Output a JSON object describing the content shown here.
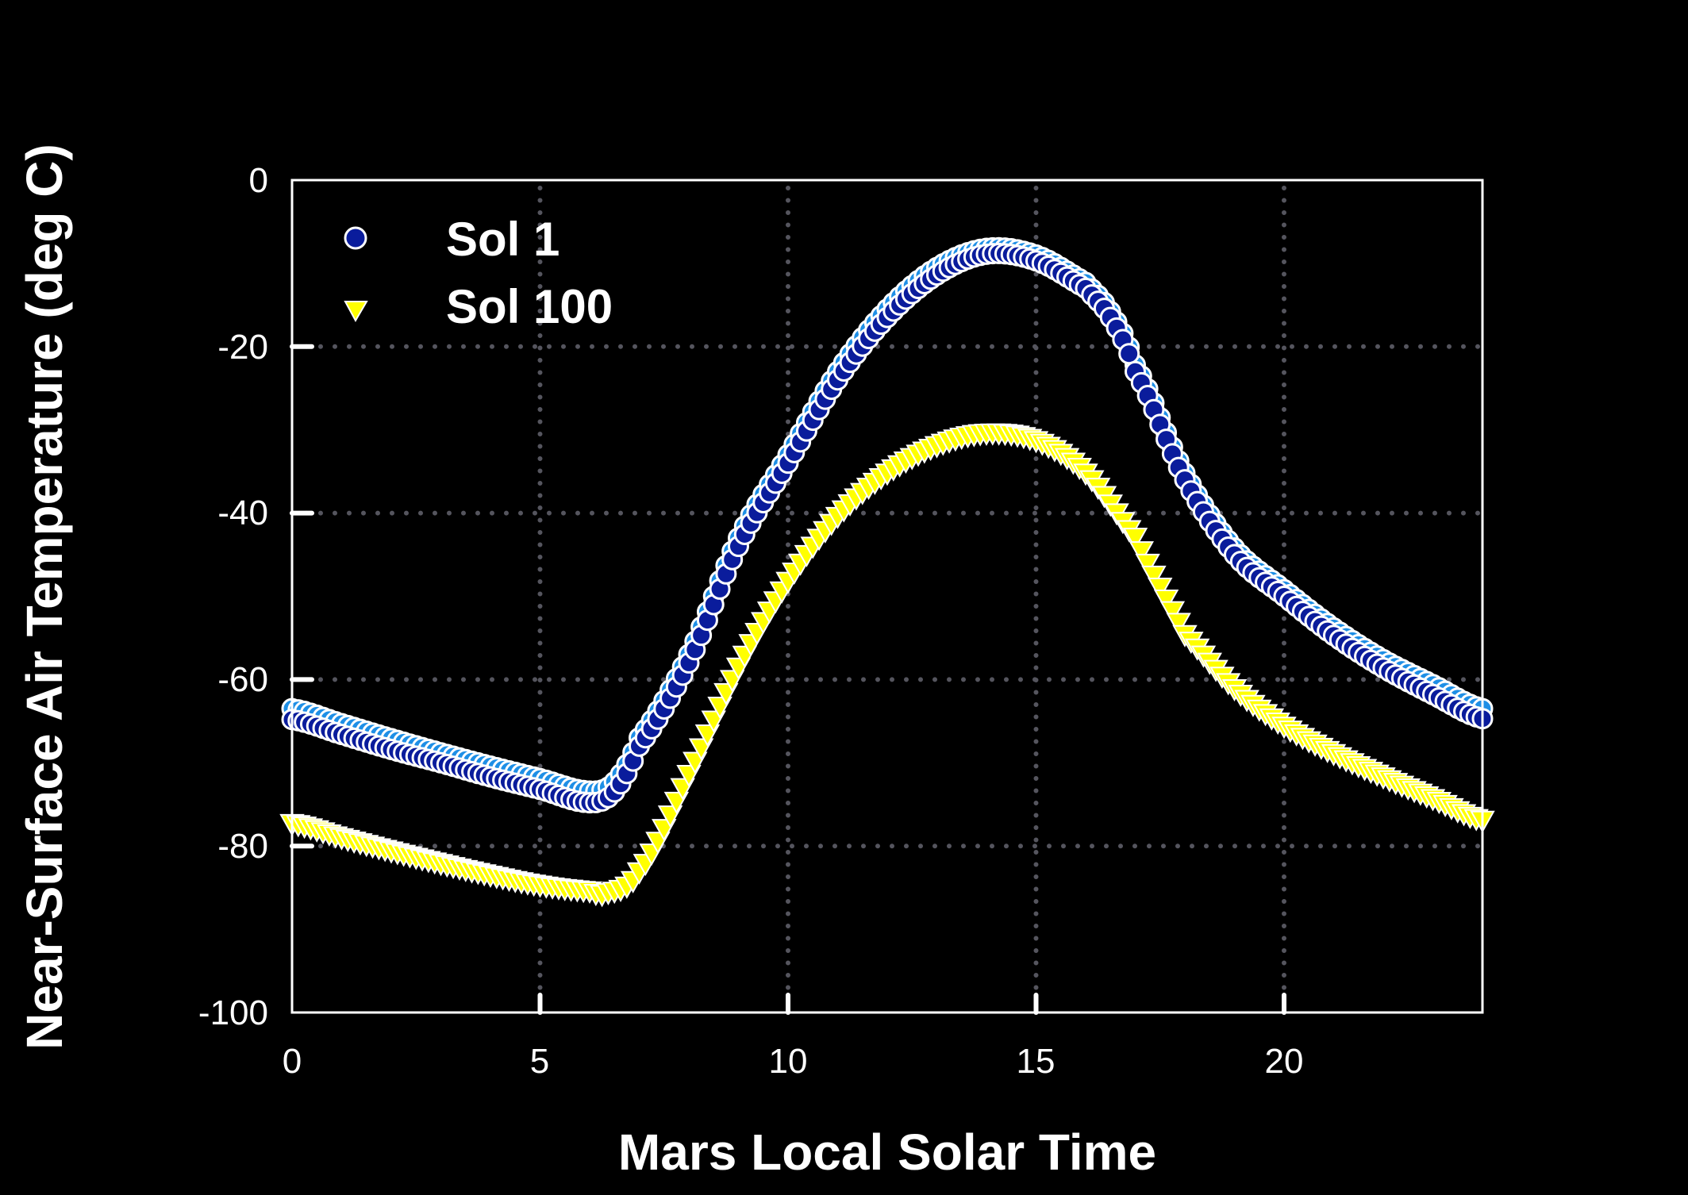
{
  "chart_data": {
    "type": "scatter",
    "xlabel": "Mars Local Solar Time",
    "ylabel": "Near-Surface Air Temperature  (deg C)",
    "xlim": [
      0,
      24
    ],
    "ylim": [
      -100,
      0
    ],
    "xticks": [
      "0",
      "5",
      "10",
      "15",
      "20"
    ],
    "yticks": [
      "0",
      "-20",
      "-40",
      "-60",
      "-80",
      "-100"
    ],
    "grid": true,
    "legend_position": "top-left",
    "series": [
      {
        "name": "",
        "marker": "circle",
        "color": "#1e8fe6",
        "x": [
          0,
          1,
          2,
          3,
          4,
          5,
          6,
          6.5,
          7,
          8,
          9,
          10,
          11,
          12,
          13,
          14,
          15,
          16,
          16.5,
          17,
          18,
          19,
          20,
          21,
          22,
          23,
          24
        ],
        "y": [
          -63.5,
          -65.3,
          -67.1,
          -68.8,
          -70.4,
          -71.9,
          -73.4,
          -72.3,
          -67,
          -57,
          -43,
          -33,
          -23,
          -15.5,
          -10.5,
          -8.2,
          -9,
          -12.3,
          -15.8,
          -22.2,
          -35.2,
          -44.2,
          -49.2,
          -53.8,
          -57.6,
          -60.6,
          -63.5
        ]
      },
      {
        "name": "Sol 1",
        "marker": "circle",
        "color": "#0a1c9c",
        "x": [
          0,
          1,
          2,
          3,
          4,
          5,
          6,
          6.5,
          7,
          8,
          9,
          10,
          11,
          12,
          13,
          14,
          15,
          16,
          16.5,
          17,
          18,
          19,
          20,
          21,
          22,
          23,
          24
        ],
        "y": [
          -64.8,
          -66.6,
          -68.4,
          -70,
          -71.7,
          -73.2,
          -74.8,
          -73.5,
          -68,
          -58,
          -44,
          -34,
          -24,
          -16.5,
          -11.4,
          -8.9,
          -9.7,
          -13,
          -16.5,
          -23,
          -36,
          -45,
          -50,
          -54.7,
          -58.6,
          -61.8,
          -64.7
        ]
      },
      {
        "name": "Sol 100",
        "marker": "triangle-down",
        "color": "#ffff00",
        "x": [
          0,
          1,
          2,
          3,
          4,
          5,
          6,
          6.3,
          7,
          8,
          9,
          10,
          11,
          12,
          13,
          14,
          15,
          16,
          17,
          17.5,
          18,
          19,
          20,
          21,
          22,
          23,
          24
        ],
        "y": [
          -77.4,
          -79.1,
          -80.7,
          -82.2,
          -83.6,
          -84.8,
          -85.5,
          -85.8,
          -83.2,
          -71.5,
          -58.6,
          -48.3,
          -40.5,
          -35.3,
          -32,
          -30.5,
          -31.4,
          -35.3,
          -43,
          -49,
          -54.7,
          -61.2,
          -65.7,
          -69,
          -71.8,
          -74.4,
          -77
        ]
      }
    ]
  }
}
